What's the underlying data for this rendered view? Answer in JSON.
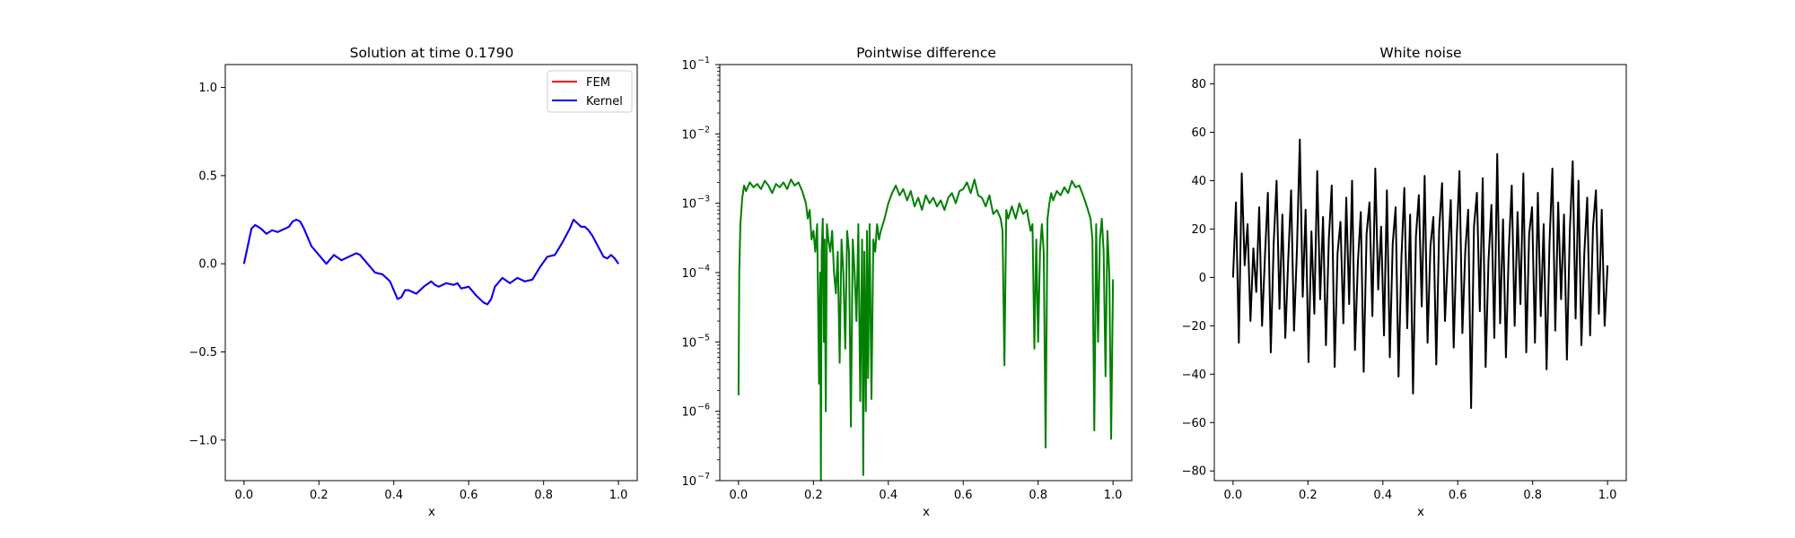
{
  "chart_data": [
    {
      "type": "line",
      "title": "Solution at time 0.1790",
      "xlabel": "x",
      "ylabel": "",
      "xlim": [
        -0.05,
        1.05
      ],
      "ylim": [
        -1.23,
        1.13
      ],
      "xticks": [
        0.0,
        0.2,
        0.4,
        0.6,
        0.8,
        1.0
      ],
      "xtick_labels": [
        "0.0",
        "0.2",
        "0.4",
        "0.6",
        "0.8",
        "1.0"
      ],
      "yticks": [
        -1.0,
        -0.5,
        0.0,
        0.5,
        1.0
      ],
      "ytick_labels": [
        "−1.0",
        "−0.5",
        "0.0",
        "0.5",
        "1.0"
      ],
      "legend": {
        "position": "top-right",
        "entries": [
          "FEM",
          "Kernel"
        ]
      },
      "series": [
        {
          "name": "FEM",
          "color": "#ff0000",
          "x": [
            0,
            0.01,
            0.02,
            0.03,
            0.045,
            0.06,
            0.075,
            0.09,
            0.1,
            0.11,
            0.12,
            0.13,
            0.14,
            0.15,
            0.16,
            0.17,
            0.18,
            0.2,
            0.22,
            0.24,
            0.26,
            0.28,
            0.3,
            0.31,
            0.33,
            0.35,
            0.37,
            0.39,
            0.41,
            0.42,
            0.43,
            0.44,
            0.46,
            0.48,
            0.5,
            0.51,
            0.52,
            0.54,
            0.56,
            0.57,
            0.58,
            0.6,
            0.62,
            0.64,
            0.65,
            0.66,
            0.67,
            0.69,
            0.71,
            0.73,
            0.75,
            0.77,
            0.79,
            0.81,
            0.83,
            0.85,
            0.87,
            0.88,
            0.89,
            0.9,
            0.91,
            0.92,
            0.93,
            0.95,
            0.96,
            0.97,
            0.98,
            0.99,
            1.0
          ],
          "y": [
            0.0,
            0.1,
            0.2,
            0.22,
            0.2,
            0.17,
            0.19,
            0.18,
            0.19,
            0.2,
            0.21,
            0.24,
            0.25,
            0.24,
            0.2,
            0.15,
            0.1,
            0.05,
            0.0,
            0.05,
            0.02,
            0.04,
            0.06,
            0.05,
            0.0,
            -0.05,
            -0.06,
            -0.1,
            -0.2,
            -0.19,
            -0.15,
            -0.15,
            -0.17,
            -0.13,
            -0.1,
            -0.12,
            -0.13,
            -0.11,
            -0.12,
            -0.11,
            -0.14,
            -0.13,
            -0.18,
            -0.22,
            -0.23,
            -0.2,
            -0.13,
            -0.08,
            -0.11,
            -0.08,
            -0.1,
            -0.09,
            -0.02,
            0.04,
            0.05,
            0.12,
            0.2,
            0.25,
            0.23,
            0.21,
            0.21,
            0.19,
            0.16,
            0.08,
            0.04,
            0.03,
            0.05,
            0.03,
            0.0
          ]
        },
        {
          "name": "Kernel",
          "color": "#0000ff",
          "x": [
            0,
            0.01,
            0.02,
            0.03,
            0.045,
            0.06,
            0.075,
            0.09,
            0.1,
            0.11,
            0.12,
            0.13,
            0.14,
            0.15,
            0.16,
            0.17,
            0.18,
            0.2,
            0.22,
            0.24,
            0.26,
            0.28,
            0.3,
            0.31,
            0.33,
            0.35,
            0.37,
            0.39,
            0.41,
            0.42,
            0.43,
            0.44,
            0.46,
            0.48,
            0.5,
            0.51,
            0.52,
            0.54,
            0.56,
            0.57,
            0.58,
            0.6,
            0.62,
            0.64,
            0.65,
            0.66,
            0.67,
            0.69,
            0.71,
            0.73,
            0.75,
            0.77,
            0.79,
            0.81,
            0.83,
            0.85,
            0.87,
            0.88,
            0.89,
            0.9,
            0.91,
            0.92,
            0.93,
            0.95,
            0.96,
            0.97,
            0.98,
            0.99,
            1.0
          ],
          "y": [
            0.0,
            0.1,
            0.2,
            0.22,
            0.2,
            0.17,
            0.19,
            0.18,
            0.19,
            0.2,
            0.21,
            0.24,
            0.25,
            0.24,
            0.2,
            0.15,
            0.1,
            0.05,
            0.0,
            0.05,
            0.02,
            0.04,
            0.06,
            0.05,
            0.0,
            -0.05,
            -0.06,
            -0.1,
            -0.2,
            -0.19,
            -0.15,
            -0.15,
            -0.17,
            -0.13,
            -0.1,
            -0.12,
            -0.13,
            -0.11,
            -0.12,
            -0.11,
            -0.14,
            -0.13,
            -0.18,
            -0.22,
            -0.23,
            -0.2,
            -0.13,
            -0.08,
            -0.11,
            -0.08,
            -0.1,
            -0.09,
            -0.02,
            0.04,
            0.05,
            0.12,
            0.2,
            0.25,
            0.23,
            0.21,
            0.21,
            0.19,
            0.16,
            0.08,
            0.04,
            0.03,
            0.05,
            0.03,
            0.0
          ]
        }
      ]
    },
    {
      "type": "line",
      "title": "Pointwise difference",
      "xlabel": "x",
      "ylabel": "",
      "yscale": "log",
      "xlim": [
        -0.05,
        1.05
      ],
      "ylim": [
        1e-07,
        0.1
      ],
      "xticks": [
        0.0,
        0.2,
        0.4,
        0.6,
        0.8,
        1.0
      ],
      "xtick_labels": [
        "0.0",
        "0.2",
        "0.4",
        "0.6",
        "0.8",
        "1.0"
      ],
      "yticks_base": "10",
      "yticks_exp": [
        "−7",
        "−6",
        "−5",
        "−4",
        "−3",
        "−2",
        "−1"
      ],
      "series": [
        {
          "name": "difference",
          "color": "#008000",
          "x": [
            0.0,
            0.002,
            0.005,
            0.01,
            0.015,
            0.02,
            0.03,
            0.04,
            0.05,
            0.06,
            0.07,
            0.08,
            0.09,
            0.1,
            0.11,
            0.12,
            0.13,
            0.14,
            0.15,
            0.16,
            0.17,
            0.18,
            0.185,
            0.19,
            0.195,
            0.2,
            0.205,
            0.21,
            0.215,
            0.218,
            0.22,
            0.222,
            0.225,
            0.228,
            0.23,
            0.233,
            0.236,
            0.24,
            0.245,
            0.25,
            0.255,
            0.26,
            0.265,
            0.27,
            0.275,
            0.28,
            0.285,
            0.29,
            0.295,
            0.3,
            0.305,
            0.31,
            0.315,
            0.32,
            0.325,
            0.33,
            0.333,
            0.336,
            0.34,
            0.343,
            0.346,
            0.35,
            0.355,
            0.36,
            0.365,
            0.37,
            0.375,
            0.38,
            0.39,
            0.4,
            0.41,
            0.42,
            0.43,
            0.44,
            0.45,
            0.46,
            0.47,
            0.48,
            0.49,
            0.5,
            0.51,
            0.52,
            0.53,
            0.54,
            0.55,
            0.56,
            0.57,
            0.58,
            0.59,
            0.6,
            0.61,
            0.62,
            0.63,
            0.64,
            0.65,
            0.66,
            0.67,
            0.68,
            0.69,
            0.7,
            0.705,
            0.71,
            0.715,
            0.72,
            0.73,
            0.74,
            0.75,
            0.76,
            0.77,
            0.78,
            0.785,
            0.79,
            0.795,
            0.8,
            0.805,
            0.81,
            0.815,
            0.82,
            0.825,
            0.83,
            0.835,
            0.84,
            0.85,
            0.86,
            0.87,
            0.88,
            0.89,
            0.9,
            0.91,
            0.92,
            0.93,
            0.94,
            0.945,
            0.95,
            0.955,
            0.96,
            0.965,
            0.97,
            0.975,
            0.98,
            0.985,
            0.99,
            0.995,
            1.0
          ],
          "y": [
            1.7e-06,
            0.0001,
            0.0005,
            0.0012,
            0.0018,
            0.0015,
            0.002,
            0.0017,
            0.0019,
            0.0016,
            0.0021,
            0.0018,
            0.0014,
            0.0019,
            0.0017,
            0.002,
            0.0016,
            0.0022,
            0.0018,
            0.002,
            0.0015,
            0.001,
            0.0006,
            0.0008,
            0.0003,
            0.0004,
            0.0002,
            0.0005,
            2.5e-06,
            0.0001,
            1e-07,
            0.0002,
            0.0006,
            1e-05,
            0.0003,
            1e-06,
            0.0005,
            0.0003,
            0.0002,
            0.0004,
            0.0001,
            5e-05,
            0.0002,
            5e-06,
            0.0003,
            0.0001,
            8e-06,
            0.0004,
            0.0002,
            6e-07,
            0.0003,
            0.0001,
            2e-05,
            0.0005,
            1.4e-06,
            0.0003,
            1.2e-07,
            0.0002,
            1e-06,
            0.0004,
            3e-06,
            0.0005,
            1.5e-06,
            0.0003,
            0.0002,
            0.0005,
            0.0003,
            0.0004,
            0.0006,
            0.001,
            0.0014,
            0.0018,
            0.0013,
            0.0016,
            0.0011,
            0.0015,
            0.0009,
            0.0012,
            0.0008,
            0.0013,
            0.001,
            0.0012,
            0.0009,
            0.0011,
            0.0008,
            0.0012,
            0.0014,
            0.001,
            0.0015,
            0.0016,
            0.002,
            0.0014,
            0.0022,
            0.0013,
            0.0012,
            0.0009,
            0.0013,
            0.0007,
            0.0008,
            0.0006,
            0.0004,
            4.6e-06,
            0.0008,
            0.0006,
            0.0009,
            0.0006,
            0.001,
            0.0007,
            0.0008,
            0.0004,
            0.0005,
            8e-06,
            0.0003,
            1e-05,
            0.0002,
            0.0005,
            0.0002,
            3e-07,
            0.0006,
            0.001,
            0.0014,
            0.0011,
            0.0015,
            0.0013,
            0.0017,
            0.0014,
            0.0021,
            0.0017,
            0.0018,
            0.0013,
            0.0009,
            0.0006,
            0.0003,
            5.3e-07,
            0.0005,
            1e-05,
            0.0003,
            0.0006,
            0.0002,
            3.2e-06,
            0.0004,
            0.0001,
            4e-07,
            8e-05
          ]
        }
      ]
    },
    {
      "type": "line",
      "title": "White noise",
      "xlabel": "x",
      "ylabel": "",
      "xlim": [
        -0.05,
        1.05
      ],
      "ylim": [
        -84,
        88
      ],
      "xticks": [
        0.0,
        0.2,
        0.4,
        0.6,
        0.8,
        1.0
      ],
      "xtick_labels": [
        "0.0",
        "0.2",
        "0.4",
        "0.6",
        "0.8",
        "1.0"
      ],
      "yticks": [
        -80,
        -60,
        -40,
        -20,
        0,
        20,
        40,
        60,
        80
      ],
      "ytick_labels": [
        "−80",
        "−60",
        "−40",
        "−20",
        "0",
        "20",
        "40",
        "60",
        "80"
      ],
      "series": [
        {
          "name": "noise",
          "color": "#000000",
          "n_points": 400,
          "y": [
            0,
            31,
            -27,
            43,
            5,
            22,
            -18,
            12,
            -6,
            29,
            -20,
            9,
            35,
            -31,
            14,
            40,
            -13,
            26,
            -25,
            7,
            36,
            -22,
            11,
            57,
            -8,
            28,
            -35,
            19,
            -15,
            44,
            -9,
            25,
            -28,
            16,
            38,
            -37,
            10,
            23,
            -19,
            33,
            -11,
            40,
            -30,
            6,
            27,
            -39,
            18,
            31,
            -16,
            45,
            -5,
            21,
            -24,
            36,
            -33,
            14,
            29,
            -41,
            8,
            37,
            -21,
            26,
            -48,
            17,
            34,
            -12,
            42,
            -27,
            13,
            25,
            -36,
            20,
            39,
            -18,
            9,
            32,
            -29,
            15,
            44,
            -23,
            11,
            28,
            -54,
            21,
            35,
            -14,
            41,
            -37,
            7,
            30,
            -25,
            51,
            -19,
            24,
            -33,
            12,
            38,
            -20,
            27,
            -11,
            43,
            -31,
            18,
            29,
            -27,
            35,
            -16,
            22,
            -38,
            14,
            45,
            -22,
            31,
            -9,
            26,
            -34,
            19,
            48,
            -17,
            40,
            -28,
            10,
            33,
            -24,
            21,
            36,
            -15,
            28,
            -20,
            5
          ]
        }
      ]
    }
  ]
}
